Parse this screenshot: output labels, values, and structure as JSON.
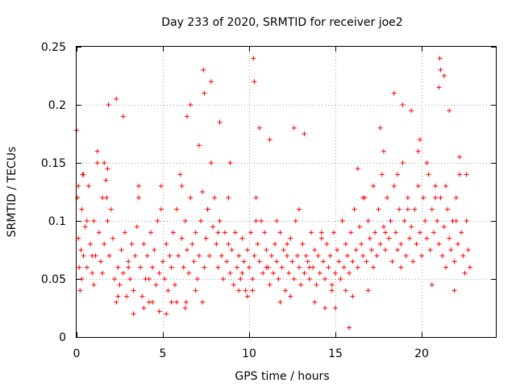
{
  "chart_data": {
    "type": "scatter",
    "title": "Day 233 of 2020, SRMTID for receiver joe2",
    "xlabel": "GPS time / hours",
    "ylabel": "SRMTID / TECUs",
    "xlim": [
      0,
      24.3
    ],
    "ylim": [
      0,
      0.25
    ],
    "xticks": [
      0,
      5,
      10,
      15,
      20
    ],
    "xtick_labels": [
      "0",
      "5",
      "10",
      "15",
      "20"
    ],
    "yticks": [
      0,
      0.05,
      0.1,
      0.15,
      0.2,
      0.25
    ],
    "ytick_labels": [
      "0",
      "0.05",
      "0.1",
      "0.15",
      "0.2",
      "0.25"
    ],
    "grid": true,
    "marker": "+",
    "marker_color": "#ff0000",
    "series": [
      {
        "name": "SRMTID",
        "x": [
          0.0,
          0.05,
          0.1,
          0.15,
          0.2,
          0.25,
          0.3,
          0.35,
          0.4,
          0.5,
          0.6,
          0.7,
          0.8,
          0.9,
          1.0,
          1.1,
          1.2,
          1.3,
          1.4,
          1.5,
          1.6,
          1.7,
          1.8,
          1.9,
          2.0,
          2.1,
          2.2,
          2.3,
          2.4,
          2.5,
          2.6,
          2.7,
          2.8,
          2.9,
          3.0,
          3.1,
          3.2,
          3.3,
          3.4,
          3.5,
          3.6,
          3.7,
          3.8,
          3.9,
          4.0,
          4.1,
          4.2,
          4.3,
          4.4,
          4.5,
          4.6,
          4.7,
          4.8,
          4.9,
          5.0,
          5.1,
          5.2,
          5.3,
          5.4,
          5.5,
          5.6,
          5.7,
          5.8,
          5.9,
          6.0,
          6.1,
          6.2,
          6.3,
          6.4,
          6.5,
          6.6,
          6.7,
          6.8,
          6.9,
          7.0,
          7.1,
          7.2,
          7.3,
          7.4,
          7.5,
          7.6,
          7.7,
          7.8,
          7.9,
          8.0,
          8.1,
          8.2,
          8.3,
          8.4,
          8.5,
          8.6,
          8.7,
          8.8,
          8.9,
          9.0,
          9.1,
          9.2,
          9.3,
          9.4,
          9.5,
          9.6,
          9.7,
          9.8,
          9.9,
          10.0,
          10.1,
          10.2,
          10.3,
          10.4,
          10.5,
          10.6,
          10.7,
          10.8,
          10.9,
          11.0,
          11.1,
          11.2,
          11.3,
          11.4,
          11.5,
          11.6,
          11.7,
          11.8,
          11.9,
          12.0,
          12.1,
          12.2,
          12.3,
          12.4,
          12.5,
          12.6,
          12.7,
          12.8,
          12.9,
          13.0,
          13.1,
          13.2,
          13.3,
          13.4,
          13.5,
          13.6,
          13.7,
          13.8,
          13.9,
          14.0,
          14.1,
          14.2,
          14.3,
          14.4,
          14.5,
          14.6,
          14.7,
          14.8,
          14.9,
          15.0,
          15.1,
          15.2,
          15.3,
          15.4,
          15.5,
          15.6,
          15.7,
          15.8,
          15.9,
          16.0,
          16.1,
          16.2,
          16.3,
          16.4,
          16.5,
          16.6,
          16.7,
          16.8,
          16.9,
          17.0,
          17.1,
          17.2,
          17.3,
          17.4,
          17.5,
          17.6,
          17.7,
          17.8,
          17.9,
          18.0,
          18.1,
          18.2,
          18.3,
          18.4,
          18.5,
          18.6,
          18.7,
          18.8,
          18.9,
          19.0,
          19.1,
          19.2,
          19.3,
          19.4,
          19.5,
          19.6,
          19.7,
          19.8,
          19.9,
          20.0,
          20.1,
          20.2,
          20.3,
          20.4,
          20.5,
          20.6,
          20.7,
          20.8,
          20.9,
          21.0,
          21.1,
          21.2,
          21.3,
          21.4,
          21.5,
          21.6,
          21.7,
          21.8,
          21.9,
          22.0,
          22.1,
          22.2,
          22.3,
          22.4,
          22.5,
          22.6,
          22.7,
          22.8,
          0.1,
          0.3,
          0.6,
          0.9,
          1.2,
          1.5,
          1.75,
          1.8,
          1.85,
          2.3,
          2.7,
          3.3,
          3.9,
          4.4,
          4.8,
          5.2,
          5.8,
          6.3,
          6.35,
          6.4,
          6.6,
          7.1,
          7.3,
          7.35,
          7.4,
          7.8,
          8.3,
          8.9,
          9.4,
          9.9,
          10.2,
          10.25,
          10.3,
          10.6,
          11.2,
          11.8,
          12.4,
          12.6,
          13.2,
          13.8,
          14.4,
          15.0,
          15.6,
          15.8,
          16.3,
          16.9,
          17.6,
          17.8,
          18.4,
          18.8,
          18.9,
          19.4,
          19.9,
          20.6,
          21.0,
          21.05,
          21.1,
          21.3,
          21.6,
          21.9,
          22.2,
          0.4,
          1.0,
          1.6,
          2.4,
          3.0,
          3.6,
          4.2,
          4.9,
          5.5,
          6.1,
          6.9,
          7.6,
          8.2,
          8.8,
          9.6,
          10.4,
          11.0,
          11.6,
          12.2,
          12.9,
          13.5,
          14.2,
          14.8,
          15.4,
          16.0,
          16.6,
          17.2,
          17.9,
          18.6,
          19.2,
          19.8,
          20.3,
          20.8,
          21.4,
          22.0,
          22.6
        ],
        "y": [
          0.178,
          0.12,
          0.085,
          0.06,
          0.04,
          0.075,
          0.11,
          0.14,
          0.07,
          0.095,
          0.06,
          0.13,
          0.08,
          0.055,
          0.1,
          0.07,
          0.15,
          0.09,
          0.065,
          0.12,
          0.08,
          0.135,
          0.1,
          0.07,
          0.11,
          0.085,
          0.05,
          0.03,
          0.06,
          0.045,
          0.075,
          0.055,
          0.09,
          0.035,
          0.065,
          0.05,
          0.08,
          0.04,
          0.07,
          0.095,
          0.12,
          0.06,
          0.035,
          0.08,
          0.05,
          0.07,
          0.03,
          0.09,
          0.06,
          0.075,
          0.045,
          0.1,
          0.055,
          0.13,
          0.065,
          0.05,
          0.08,
          0.04,
          0.07,
          0.06,
          0.09,
          0.045,
          0.11,
          0.07,
          0.14,
          0.085,
          0.06,
          0.1,
          0.075,
          0.055,
          0.12,
          0.08,
          0.065,
          0.09,
          0.05,
          0.07,
          0.1,
          0.125,
          0.06,
          0.085,
          0.11,
          0.07,
          0.15,
          0.095,
          0.12,
          0.08,
          0.06,
          0.1,
          0.07,
          0.05,
          0.09,
          0.065,
          0.08,
          0.055,
          0.075,
          0.045,
          0.09,
          0.06,
          0.07,
          0.05,
          0.085,
          0.065,
          0.04,
          0.075,
          0.06,
          0.09,
          0.05,
          0.07,
          0.12,
          0.08,
          0.065,
          0.1,
          0.055,
          0.09,
          0.075,
          0.06,
          0.045,
          0.07,
          0.055,
          0.08,
          0.065,
          0.05,
          0.09,
          0.06,
          0.075,
          0.04,
          0.07,
          0.055,
          0.085,
          0.065,
          0.05,
          0.1,
          0.07,
          0.06,
          0.045,
          0.08,
          0.055,
          0.07,
          0.065,
          0.05,
          0.09,
          0.06,
          0.075,
          0.045,
          0.07,
          0.055,
          0.085,
          0.065,
          0.05,
          0.08,
          0.06,
          0.07,
          0.045,
          0.09,
          0.055,
          0.075,
          0.065,
          0.05,
          0.1,
          0.06,
          0.08,
          0.07,
          0.055,
          0.09,
          0.065,
          0.11,
          0.075,
          0.06,
          0.095,
          0.08,
          0.07,
          0.12,
          0.065,
          0.1,
          0.085,
          0.075,
          0.13,
          0.09,
          0.07,
          0.11,
          0.08,
          0.14,
          0.095,
          0.075,
          0.12,
          0.085,
          0.1,
          0.065,
          0.13,
          0.09,
          0.075,
          0.11,
          0.08,
          0.15,
          0.1,
          0.07,
          0.12,
          0.085,
          0.095,
          0.065,
          0.11,
          0.08,
          0.13,
          0.09,
          0.07,
          0.12,
          0.1,
          0.085,
          0.14,
          0.075,
          0.11,
          0.09,
          0.13,
          0.1,
          0.08,
          0.12,
          0.07,
          0.095,
          0.06,
          0.11,
          0.085,
          0.075,
          0.1,
          0.065,
          0.12,
          0.08,
          0.14,
          0.09,
          0.07,
          0.055,
          0.1,
          0.075,
          0.06,
          0.13,
          0.05,
          0.1,
          0.07,
          0.16,
          0.055,
          0.12,
          0.145,
          0.2,
          0.205,
          0.19,
          0.02,
          0.025,
          0.03,
          0.022,
          0.02,
          0.03,
          0.025,
          0.03,
          0.19,
          0.2,
          0.165,
          0.03,
          0.23,
          0.21,
          0.22,
          0.185,
          0.15,
          0.04,
          0.035,
          0.04,
          0.24,
          0.22,
          0.18,
          0.17,
          0.03,
          0.035,
          0.18,
          0.175,
          0.03,
          0.025,
          0.025,
          0.04,
          0.008,
          0.145,
          0.04,
          0.18,
          0.16,
          0.21,
          0.06,
          0.2,
          0.195,
          0.17,
          0.045,
          0.215,
          0.24,
          0.23,
          0.225,
          0.195,
          0.04,
          0.155,
          0.14,
          0.045,
          0.15,
          0.035,
          0.06,
          0.13,
          0.05,
          0.11,
          0.03,
          0.13,
          0.04,
          0.11,
          0.09,
          0.12,
          0.055,
          0.1,
          0.06,
          0.1,
          0.08,
          0.11,
          0.06,
          0.09,
          0.04,
          0.1,
          0.035,
          0.12,
          0.06,
          0.09,
          0.14,
          0.11,
          0.16,
          0.15,
          0.12,
          0.13,
          0.1,
          0.14
        ]
      }
    ]
  }
}
